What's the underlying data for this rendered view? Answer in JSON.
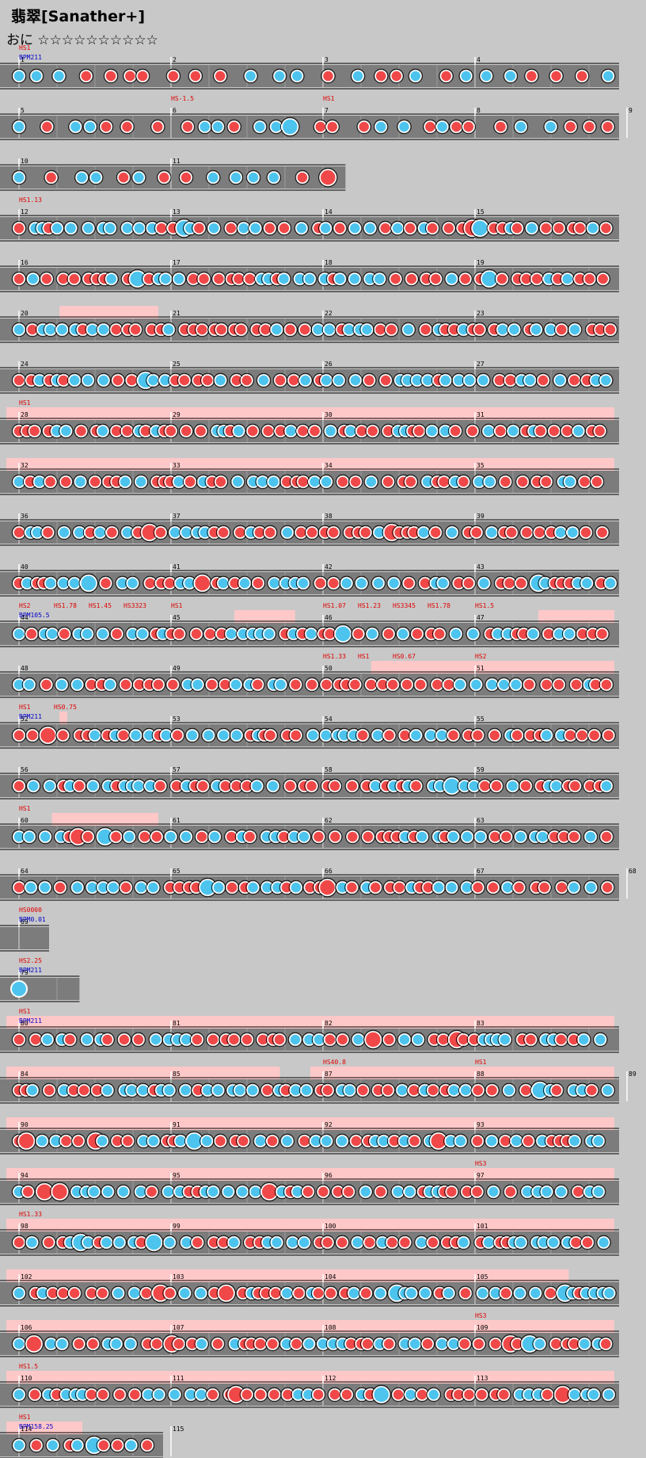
{
  "song": {
    "title": "翡翠[Sanather+]"
  },
  "course": {
    "name": "おに",
    "stars": "☆☆☆☆☆☆☆☆☆☆"
  },
  "colors": {
    "don": "#f04848",
    "ka": "#4cc4ee",
    "lane": "#7c7c7c",
    "gogo": "#ffc8c8",
    "background": "#c8c8c8"
  },
  "rows": [
    {
      "measures": [
        "1",
        "2",
        "3",
        "4"
      ],
      "labels": [
        {
          "t": "HS1",
          "k": "hs",
          "m": 0
        },
        {
          "t": "BPM211",
          "k": "bpm",
          "m": 0
        }
      ]
    },
    {
      "measures": [
        "5",
        "6",
        "7",
        "8",
        "9"
      ],
      "labels": [
        {
          "t": "HS-1.5",
          "k": "hs",
          "m": 1
        },
        {
          "t": "HS1",
          "k": "hs",
          "m": 2
        }
      ]
    },
    {
      "measures": [
        "10",
        "11"
      ],
      "labels": []
    },
    {
      "measures": [
        "12",
        "13",
        "14",
        "15"
      ],
      "labels": [
        {
          "t": "HS1.13",
          "k": "hs",
          "m": 0
        }
      ]
    },
    {
      "measures": [
        "16",
        "17",
        "18",
        "19"
      ],
      "labels": []
    },
    {
      "measures": [
        "20",
        "21",
        "22",
        "23"
      ],
      "labels": []
    },
    {
      "measures": [
        "24",
        "25",
        "26",
        "27"
      ],
      "labels": []
    },
    {
      "measures": [
        "28",
        "29",
        "30",
        "31"
      ],
      "labels": [
        {
          "t": "HS1",
          "k": "hs",
          "m": 0
        }
      ]
    },
    {
      "measures": [
        "32",
        "33",
        "34",
        "35"
      ],
      "labels": []
    },
    {
      "measures": [
        "36",
        "37",
        "38",
        "39"
      ],
      "labels": []
    },
    {
      "measures": [
        "40",
        "41",
        "42",
        "43"
      ],
      "labels": []
    },
    {
      "measures": [
        "44",
        "45",
        "46",
        "47"
      ],
      "labels": [
        {
          "t": "HS2",
          "k": "hs",
          "m": 0
        },
        {
          "t": "HS1.78",
          "k": "hs",
          "m": 0
        },
        {
          "t": "BPM105.5",
          "k": "bpm",
          "m": 0
        },
        {
          "t": "HS1.45",
          "k": "hs",
          "m": 0
        },
        {
          "t": "HS3323",
          "k": "hs",
          "m": 0
        },
        {
          "t": "HS1",
          "k": "hs",
          "m": 1
        },
        {
          "t": "HS1.07",
          "k": "hs",
          "m": 2
        },
        {
          "t": "HS1.23",
          "k": "hs",
          "m": 2
        },
        {
          "t": "HS3345",
          "k": "hs",
          "m": 2
        },
        {
          "t": "HS1.78",
          "k": "hs",
          "m": 2
        },
        {
          "t": "HS1.5",
          "k": "hs",
          "m": 3
        }
      ]
    },
    {
      "measures": [
        "48",
        "49",
        "50",
        "51"
      ],
      "labels": [
        {
          "t": "HS1.33",
          "k": "hs",
          "m": 2
        },
        {
          "t": "HS1",
          "k": "hs",
          "m": 2
        },
        {
          "t": "HS0.67",
          "k": "hs",
          "m": 2
        },
        {
          "t": "HS2",
          "k": "hs",
          "m": 3
        }
      ]
    },
    {
      "measures": [
        "52",
        "53",
        "54",
        "55"
      ],
      "labels": [
        {
          "t": "HS1",
          "k": "hs",
          "m": 0
        },
        {
          "t": "BPM211",
          "k": "bpm",
          "m": 0
        },
        {
          "t": "HS0.75",
          "k": "hs",
          "m": 0
        }
      ]
    },
    {
      "measures": [
        "56",
        "57",
        "58",
        "59"
      ],
      "labels": []
    },
    {
      "measures": [
        "60",
        "61",
        "62",
        "63"
      ],
      "labels": [
        {
          "t": "HS1",
          "k": "hs",
          "m": 0
        }
      ]
    },
    {
      "measures": [
        "64",
        "65",
        "66",
        "67",
        "68"
      ],
      "labels": []
    },
    {
      "measures": [
        "69"
      ],
      "labels": [
        {
          "t": "HS0000",
          "k": "hs",
          "m": 0
        },
        {
          "t": "BPM0.01",
          "k": "bpm",
          "m": 0
        }
      ]
    },
    {
      "measures": [
        "79"
      ],
      "labels": [
        {
          "t": "HS2.25",
          "k": "hs",
          "m": 0
        },
        {
          "t": "BPM211",
          "k": "bpm",
          "m": 0
        }
      ]
    },
    {
      "measures": [
        "80",
        "81",
        "82",
        "83"
      ],
      "labels": [
        {
          "t": "HS1",
          "k": "hs",
          "m": 0
        },
        {
          "t": "BPM211",
          "k": "bpm",
          "m": 0
        }
      ]
    },
    {
      "measures": [
        "84",
        "85",
        "87",
        "88",
        "89"
      ],
      "labels": [
        {
          "t": "HS40.8",
          "k": "hs",
          "m": 2
        },
        {
          "t": "HS1",
          "k": "hs",
          "m": 3
        }
      ]
    },
    {
      "measures": [
        "90",
        "91",
        "92",
        "93"
      ],
      "labels": []
    },
    {
      "measures": [
        "94",
        "95",
        "96",
        "97"
      ],
      "labels": [
        {
          "t": "HS3",
          "k": "hs",
          "m": 3
        }
      ]
    },
    {
      "measures": [
        "98",
        "99",
        "100",
        "101"
      ],
      "labels": [
        {
          "t": "HS1.33",
          "k": "hs",
          "m": 0
        }
      ]
    },
    {
      "measures": [
        "102",
        "103",
        "104",
        "105"
      ],
      "labels": []
    },
    {
      "measures": [
        "106",
        "107",
        "108",
        "109"
      ],
      "labels": [
        {
          "t": "HS3",
          "k": "hs",
          "m": 3
        }
      ]
    },
    {
      "measures": [
        "110",
        "111",
        "112",
        "113"
      ],
      "labels": [
        {
          "t": "HS1.5",
          "k": "hs",
          "m": 0
        }
      ]
    },
    {
      "measures": [
        "114",
        "115"
      ],
      "labels": [
        {
          "t": "HS1",
          "k": "hs",
          "m": 0
        },
        {
          "t": "BPM158.25",
          "k": "bpm",
          "m": 0
        }
      ]
    }
  ]
}
